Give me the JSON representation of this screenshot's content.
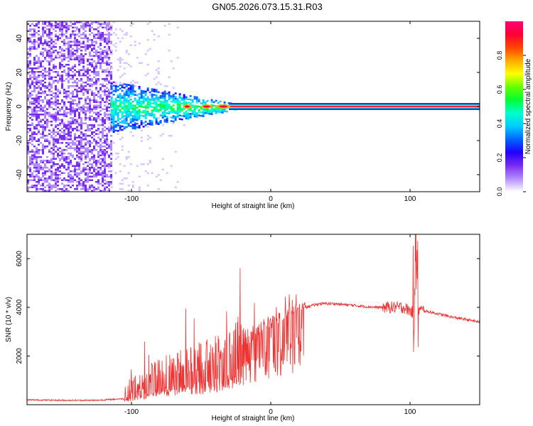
{
  "page_title": "GN05.2026.073.15.31.R03",
  "chart_data": [
    {
      "type": "heatmap",
      "xlabel": "Height of straight line (km)",
      "ylabel": "Frequency (Hz)",
      "xlim": [
        -175,
        150
      ],
      "ylim": [
        -50,
        50
      ],
      "x_ticks": [
        -100,
        0,
        100
      ],
      "y_ticks": [
        -40,
        -20,
        0,
        20,
        40
      ],
      "colorbar": {
        "label": "Normalized spectral amplitude",
        "range": [
          0,
          1
        ],
        "ticks": [
          "0.0",
          "0.2",
          "0.4",
          "0.6",
          "0.8"
        ],
        "colors": [
          "#ffffff",
          "#b38cff",
          "#7a2cf0",
          "#1f00ff",
          "#0066ff",
          "#00ccff",
          "#00ffcc",
          "#00ff33",
          "#66ff00",
          "#ffff00",
          "#ffaa00",
          "#ff4400",
          "#ff0033",
          "#ff0077"
        ]
      },
      "description_values": {
        "noise_region_x": [
          -175,
          -115
        ],
        "transition_region_x": [
          -115,
          -25
        ],
        "carrier_center_hz": 0,
        "carrier_start_x": -30
      }
    },
    {
      "type": "line",
      "xlabel": "Height of straight line (km)",
      "ylabel": "SNR (10 * v/v)",
      "xlim": [
        -175,
        150
      ],
      "ylim": [
        0,
        7000
      ],
      "x_ticks": [
        -100,
        0,
        100
      ],
      "y_ticks": [
        2000,
        4000,
        6000
      ],
      "line_color": "#ee3333",
      "series": [
        {
          "x": [
            -175,
            -150,
            -125,
            -105,
            -95,
            -85,
            -75,
            -65,
            -55,
            -45,
            -35,
            -25,
            -15,
            -5,
            5,
            15,
            25,
            35,
            45,
            55,
            65,
            75,
            85,
            95,
            102,
            104,
            106,
            115,
            130,
            150
          ],
          "y": [
            200,
            180,
            180,
            250,
            500,
            800,
            1000,
            1100,
            1200,
            1300,
            1500,
            2000,
            2500,
            2900,
            3300,
            3700,
            4000,
            4150,
            4150,
            4100,
            4050,
            4000,
            4000,
            4000,
            3800,
            6800,
            3900,
            3800,
            3600,
            3400
          ]
        }
      ]
    }
  ]
}
